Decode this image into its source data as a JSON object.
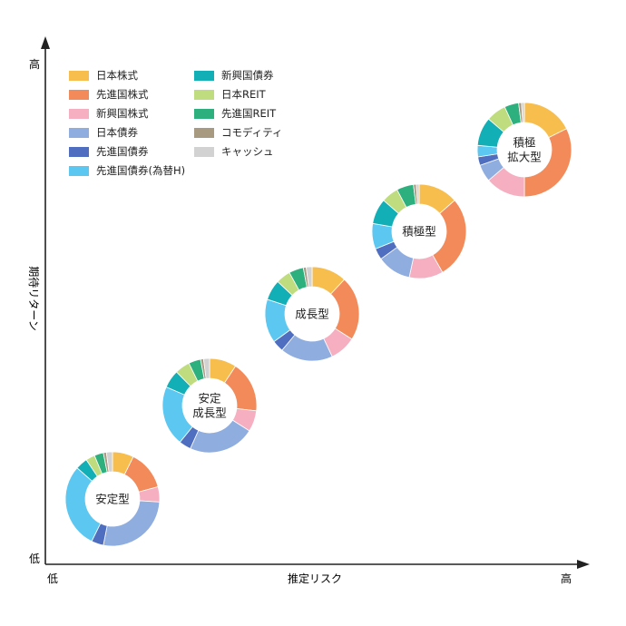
{
  "axes": {
    "x_label": "推定リスク",
    "y_label": "期待リターン",
    "x_low": "低",
    "x_high": "高",
    "y_low": "低",
    "y_high": "高"
  },
  "legend": [
    {
      "key": "jp_equity",
      "label": "日本株式",
      "color": "#F8BE4D"
    },
    {
      "key": "dev_equity",
      "label": "先進国株式",
      "color": "#F28A5A"
    },
    {
      "key": "em_equity",
      "label": "新興国株式",
      "color": "#F5AFC0"
    },
    {
      "key": "jp_bond",
      "label": "日本債券",
      "color": "#8FADDF"
    },
    {
      "key": "dev_bond",
      "label": "先進国債券",
      "color": "#4F6EBF"
    },
    {
      "key": "dev_bond_h",
      "label": "先進国債券(為替H)",
      "color": "#5CC7F0"
    },
    {
      "key": "em_bond",
      "label": "新興国債券",
      "color": "#13AFB7"
    },
    {
      "key": "jp_reit",
      "label": "日本REIT",
      "color": "#BFDC7E"
    },
    {
      "key": "dev_reit",
      "label": "先進国REIT",
      "color": "#2DB07D"
    },
    {
      "key": "commodity",
      "label": "コモディティ",
      "color": "#A89A80"
    },
    {
      "key": "cash",
      "label": "キャッシュ",
      "color": "#D2D2D2"
    }
  ],
  "portfolios": [
    {
      "label": [
        "安定型"
      ],
      "values": [
        7,
        13,
        5,
        26,
        4,
        28,
        4,
        3,
        3,
        1,
        2
      ]
    },
    {
      "label": [
        "安定",
        "成長型"
      ],
      "values": [
        9,
        17,
        7,
        22,
        4,
        20,
        6,
        5,
        4,
        1,
        2
      ]
    },
    {
      "label": [
        "成長型"
      ],
      "values": [
        12,
        22,
        9,
        18,
        4,
        15,
        7,
        5,
        5,
        1,
        2
      ]
    },
    {
      "label": [
        "積極型"
      ],
      "values": [
        14,
        29,
        12,
        12,
        4,
        9,
        9,
        6,
        6,
        1,
        1
      ]
    },
    {
      "label": [
        "積極",
        "拡大型"
      ],
      "values": [
        18,
        33,
        14,
        6,
        3,
        4,
        10,
        7,
        5,
        1,
        1
      ]
    }
  ]
}
